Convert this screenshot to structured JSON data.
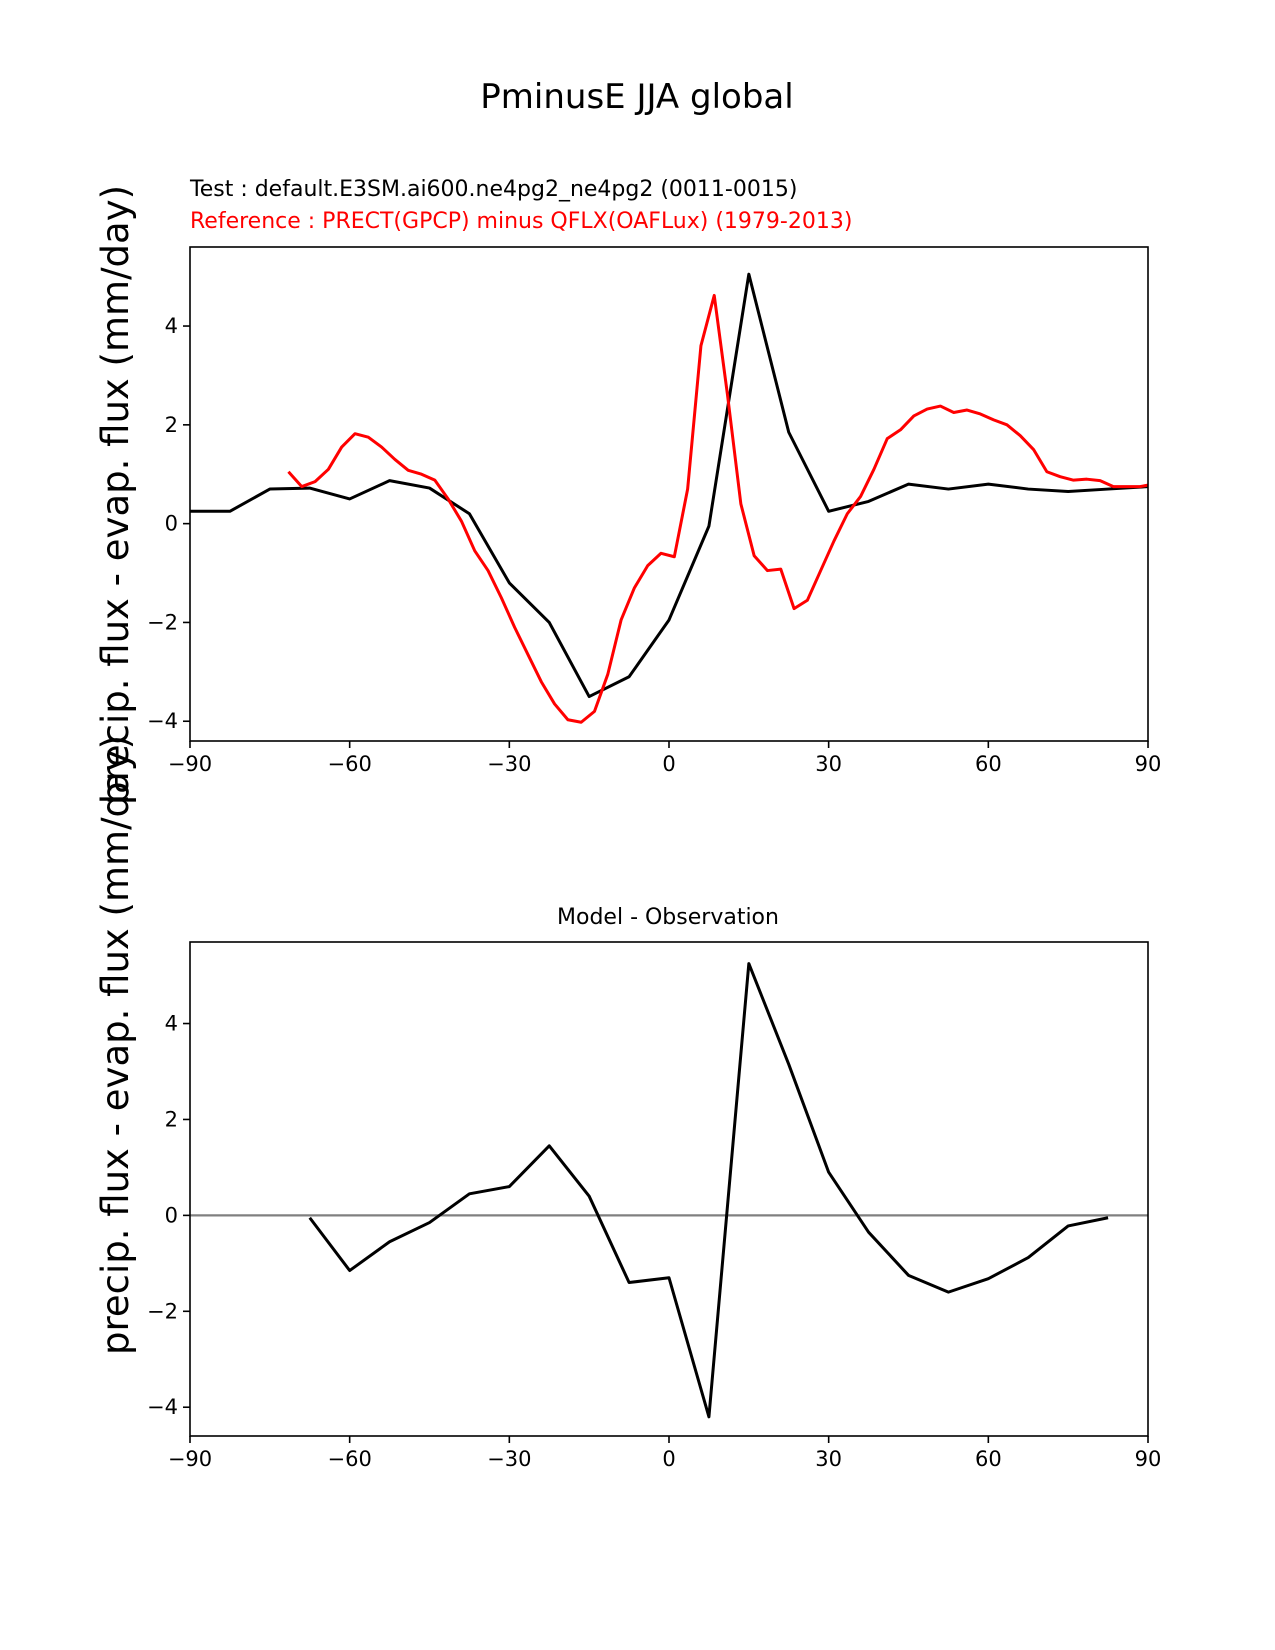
{
  "figure": {
    "title": "PminusE JJA global",
    "test_label": "Test : default.E3SM.ai600.ne4pg2_ne4pg2 (0011-0015)",
    "reference_label": "Reference : PRECT(GPCP) minus QFLX(OAFLux) (1979-2013)"
  },
  "colors": {
    "test": "#000000",
    "reference": "#ff0000",
    "zero_line": "#808080"
  },
  "chart_data": [
    {
      "type": "line",
      "title": "",
      "xlabel": "",
      "ylabel": "precip. flux - evap. flux (mm/day)",
      "xlim": [
        -90,
        90
      ],
      "ylim": [
        -4.4,
        5.6
      ],
      "xticks": [
        -90,
        -60,
        -30,
        0,
        30,
        60,
        90
      ],
      "xtick_labels": [
        "−90",
        "−60",
        "−30",
        "0",
        "30",
        "60",
        "90"
      ],
      "yticks": [
        -4,
        -2,
        0,
        2,
        4
      ],
      "ytick_labels": [
        "−4",
        "−2",
        "0",
        "2",
        "4"
      ],
      "series": [
        {
          "name": "Test",
          "color": "#000000",
          "x": [
            -90,
            -82.5,
            -75,
            -67.5,
            -60,
            -52.5,
            -45,
            -37.5,
            -30,
            -22.5,
            -15,
            -7.5,
            0,
            7.5,
            15,
            22.5,
            30,
            37.5,
            45,
            52.5,
            60,
            67.5,
            75,
            82.5,
            90
          ],
          "y": [
            0.25,
            0.25,
            0.7,
            0.72,
            0.5,
            0.87,
            0.72,
            0.2,
            -1.2,
            -2.0,
            -3.5,
            -3.1,
            -1.95,
            -0.05,
            5.05,
            1.85,
            0.25,
            0.45,
            0.8,
            0.7,
            0.8,
            0.7,
            0.65,
            0.7,
            0.75
          ]
        },
        {
          "name": "Reference",
          "color": "#ff0000",
          "x": [
            -71.5,
            -69,
            -66.5,
            -64,
            -61.5,
            -59,
            -56.5,
            -54,
            -51.5,
            -49,
            -46.5,
            -44,
            -41.5,
            -39,
            -36.5,
            -34,
            -31.5,
            -29,
            -26.5,
            -24,
            -21.5,
            -19,
            -16.5,
            -14,
            -11.5,
            -9,
            -6.5,
            -4,
            -1.5,
            1,
            3.5,
            6,
            8.5,
            11,
            13.5,
            16,
            18.5,
            21,
            23.5,
            26,
            28.5,
            31,
            33.5,
            36,
            38.5,
            41,
            43.5,
            46,
            48.5,
            51,
            53.5,
            56,
            58.5,
            61,
            63.5,
            66,
            68.5,
            71,
            73.5,
            76,
            78.5,
            81,
            83.5,
            86,
            88.5,
            90
          ],
          "y": [
            1.05,
            0.75,
            0.85,
            1.1,
            1.55,
            1.82,
            1.75,
            1.55,
            1.3,
            1.08,
            1.0,
            0.88,
            0.5,
            0.05,
            -0.55,
            -0.95,
            -1.5,
            -2.1,
            -2.65,
            -3.2,
            -3.65,
            -3.97,
            -4.02,
            -3.8,
            -3.05,
            -1.95,
            -1.3,
            -0.85,
            -0.6,
            -0.67,
            0.7,
            3.6,
            4.62,
            2.6,
            0.4,
            -0.65,
            -0.95,
            -0.92,
            -1.72,
            -1.55,
            -0.95,
            -0.35,
            0.2,
            0.55,
            1.1,
            1.72,
            1.9,
            2.18,
            2.32,
            2.38,
            2.25,
            2.3,
            2.22,
            2.1,
            2.0,
            1.78,
            1.5,
            1.05,
            0.95,
            0.88,
            0.9,
            0.87,
            0.75,
            0.75,
            0.75,
            0.78
          ]
        }
      ]
    },
    {
      "type": "line",
      "title": "Model - Observation",
      "xlabel": "",
      "ylabel": "precip. flux - evap. flux (mm/day)",
      "xlim": [
        -90,
        90
      ],
      "ylim": [
        -4.6,
        5.7
      ],
      "xticks": [
        -90,
        -60,
        -30,
        0,
        30,
        60,
        90
      ],
      "xtick_labels": [
        "−90",
        "−60",
        "−30",
        "0",
        "30",
        "60",
        "90"
      ],
      "yticks": [
        -4,
        -2,
        0,
        2,
        4
      ],
      "ytick_labels": [
        "−4",
        "−2",
        "0",
        "2",
        "4"
      ],
      "zero_line": 0,
      "series": [
        {
          "name": "Model - Observation",
          "color": "#000000",
          "x": [
            -67.5,
            -60,
            -52.5,
            -45,
            -37.5,
            -30,
            -22.5,
            -15,
            -7.5,
            0,
            7.5,
            15,
            22.5,
            30,
            37.5,
            45,
            52.5,
            60,
            67.5,
            75,
            82.5
          ],
          "y": [
            -0.05,
            -1.15,
            -0.55,
            -0.15,
            0.45,
            0.6,
            1.45,
            0.4,
            -1.4,
            -1.3,
            -4.2,
            5.25,
            3.15,
            0.9,
            -0.35,
            -1.25,
            -1.6,
            -1.32,
            -0.88,
            -0.22,
            -0.05
          ]
        }
      ]
    }
  ]
}
